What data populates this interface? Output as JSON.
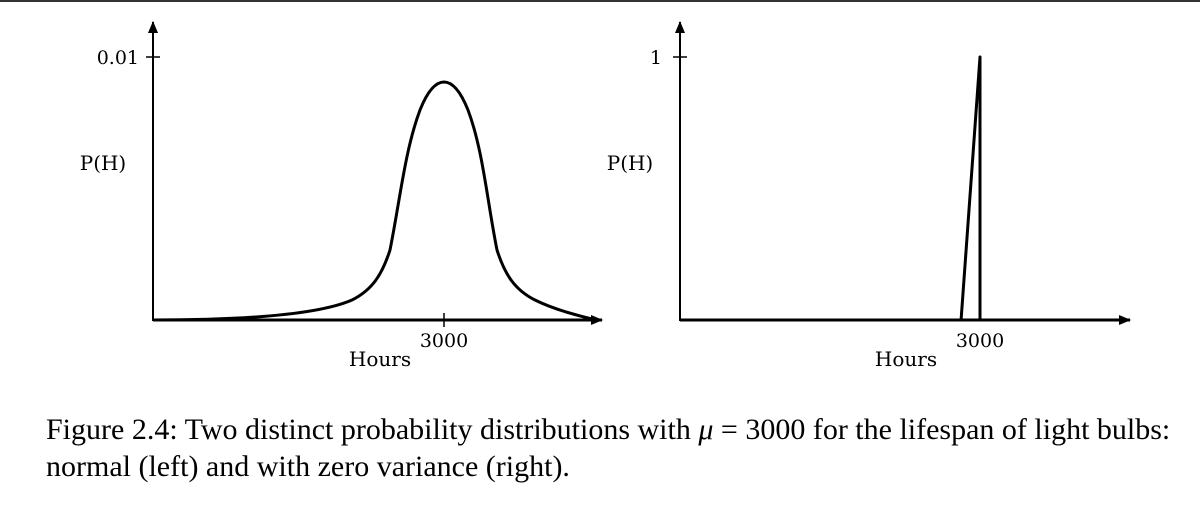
{
  "chart_data": [
    {
      "type": "line",
      "name": "normal",
      "xlabel": "Hours",
      "ylabel": "P(H)",
      "x_ticks": [
        "3000"
      ],
      "y_ticks": [
        "0.01"
      ],
      "mean": 3000,
      "peak_fraction_of_ytick": 0.9,
      "curve": "bell-shaped, peak at 3000, long tails"
    },
    {
      "type": "line",
      "name": "zero variance",
      "xlabel": "Hours",
      "ylabel": "P(H)",
      "x_ticks": [
        "3000"
      ],
      "y_ticks": [
        "1"
      ],
      "x": [
        3000
      ],
      "y": [
        1
      ]
    }
  ],
  "caption": {
    "prefix": "Figure 2.4: Two distinct probability distributions with",
    "symbol": "μ",
    "operator": "=",
    "suffix": "3000 for the lifespan of light bulbs: normal (left) and with zero variance (right)."
  },
  "colors": {
    "ink": "#000000",
    "rule": "#333333"
  }
}
